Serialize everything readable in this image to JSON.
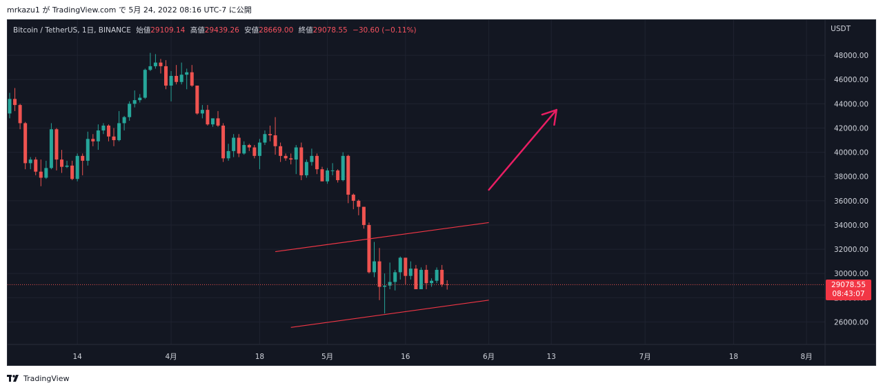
{
  "header": {
    "publish_text": "mrkazu1 が TradingView.com で 5月 24, 2022 08:16 UTC-7 に公開"
  },
  "legend": {
    "symbol": "Bitcoin / TetherUS, 1日, BINANCE",
    "open_label": "始値",
    "open_value": "29109.14",
    "high_label": "高値",
    "high_value": "29439.26",
    "low_label": "安値",
    "low_value": "28669.00",
    "close_label": "終値",
    "close_value": "29078.55",
    "change": "−30.60 (−0.11%)"
  },
  "price_axis": {
    "currency": "USDT",
    "last_price": "29078.55",
    "countdown": "08:43:07"
  },
  "footer": {
    "brand": "TradingView"
  },
  "colors": {
    "background": "#131722",
    "grid": "#1f2330",
    "up": "#26a69a",
    "down": "#ef5350",
    "trendline": "#f23645",
    "arrow": "#e91e63",
    "axis_text": "#d1d4dc"
  },
  "chart_data": {
    "type": "candlestick",
    "ylim": [
      24600,
      50000
    ],
    "y_ticks": [
      26000,
      28000,
      30000,
      32000,
      34000,
      36000,
      38000,
      40000,
      42000,
      44000,
      46000,
      48000
    ],
    "y_tick_labels": [
      "26000.00",
      "28000.00",
      "30000.00",
      "32000.00",
      "34000.00",
      "36000.00",
      "38000.00",
      "40000.00",
      "42000.00",
      "44000.00",
      "46000.00",
      "48000.00"
    ],
    "start_date": "2022-03-01",
    "x_ticks": [
      {
        "date": "2022-03-14",
        "label": "14"
      },
      {
        "date": "2022-04-01",
        "label": "4月"
      },
      {
        "date": "2022-04-18",
        "label": "18"
      },
      {
        "date": "2022-05-01",
        "label": "5月"
      },
      {
        "date": "2022-05-16",
        "label": "16"
      },
      {
        "date": "2022-06-01",
        "label": "6月"
      },
      {
        "date": "2022-06-13",
        "label": "13"
      },
      {
        "date": "2022-07-01",
        "label": "7月"
      },
      {
        "date": "2022-07-18",
        "label": "18"
      },
      {
        "date": "2022-08-01",
        "label": "8月"
      }
    ],
    "candles": [
      {
        "date": "2022-03-01",
        "o": 43200,
        "h": 44900,
        "l": 42800,
        "c": 44400
      },
      {
        "date": "2022-03-02",
        "o": 44400,
        "h": 45300,
        "l": 43400,
        "c": 43900
      },
      {
        "date": "2022-03-03",
        "o": 43900,
        "h": 44000,
        "l": 41900,
        "c": 42400
      },
      {
        "date": "2022-03-04",
        "o": 42400,
        "h": 42500,
        "l": 38600,
        "c": 39100
      },
      {
        "date": "2022-03-05",
        "o": 39100,
        "h": 39600,
        "l": 38600,
        "c": 39400
      },
      {
        "date": "2022-03-06",
        "o": 39400,
        "h": 39600,
        "l": 38100,
        "c": 38400
      },
      {
        "date": "2022-03-07",
        "o": 38400,
        "h": 39400,
        "l": 37200,
        "c": 37900
      },
      {
        "date": "2022-03-08",
        "o": 37900,
        "h": 39300,
        "l": 37800,
        "c": 38700
      },
      {
        "date": "2022-03-09",
        "o": 38700,
        "h": 42400,
        "l": 38600,
        "c": 41900
      },
      {
        "date": "2022-03-10",
        "o": 41900,
        "h": 42000,
        "l": 38500,
        "c": 39400
      },
      {
        "date": "2022-03-11",
        "o": 39400,
        "h": 40200,
        "l": 38300,
        "c": 38800
      },
      {
        "date": "2022-03-12",
        "o": 38800,
        "h": 39300,
        "l": 38700,
        "c": 38900
      },
      {
        "date": "2022-03-13",
        "o": 38900,
        "h": 39300,
        "l": 37700,
        "c": 37800
      },
      {
        "date": "2022-03-14",
        "o": 37800,
        "h": 39900,
        "l": 37600,
        "c": 39700
      },
      {
        "date": "2022-03-15",
        "o": 39700,
        "h": 39900,
        "l": 38100,
        "c": 39300
      },
      {
        "date": "2022-03-16",
        "o": 39300,
        "h": 41700,
        "l": 38900,
        "c": 41100
      },
      {
        "date": "2022-03-17",
        "o": 41100,
        "h": 41500,
        "l": 40500,
        "c": 40900
      },
      {
        "date": "2022-03-18",
        "o": 40900,
        "h": 42300,
        "l": 40200,
        "c": 41800
      },
      {
        "date": "2022-03-19",
        "o": 41800,
        "h": 42400,
        "l": 41500,
        "c": 42200
      },
      {
        "date": "2022-03-20",
        "o": 42200,
        "h": 42300,
        "l": 40900,
        "c": 41300
      },
      {
        "date": "2022-03-21",
        "o": 41300,
        "h": 42000,
        "l": 40500,
        "c": 41000
      },
      {
        "date": "2022-03-22",
        "o": 41000,
        "h": 43400,
        "l": 40900,
        "c": 42400
      },
      {
        "date": "2022-03-23",
        "o": 42400,
        "h": 43000,
        "l": 41800,
        "c": 42900
      },
      {
        "date": "2022-03-24",
        "o": 42900,
        "h": 44200,
        "l": 42600,
        "c": 44000
      },
      {
        "date": "2022-03-25",
        "o": 44000,
        "h": 45100,
        "l": 43700,
        "c": 44300
      },
      {
        "date": "2022-03-26",
        "o": 44300,
        "h": 44800,
        "l": 44100,
        "c": 44500
      },
      {
        "date": "2022-03-27",
        "o": 44500,
        "h": 46900,
        "l": 44400,
        "c": 46800
      },
      {
        "date": "2022-03-28",
        "o": 46800,
        "h": 48200,
        "l": 46700,
        "c": 47100
      },
      {
        "date": "2022-03-29",
        "o": 47100,
        "h": 48100,
        "l": 46900,
        "c": 47400
      },
      {
        "date": "2022-03-30",
        "o": 47400,
        "h": 47700,
        "l": 46500,
        "c": 47100
      },
      {
        "date": "2022-03-31",
        "o": 47100,
        "h": 47600,
        "l": 45200,
        "c": 45500
      },
      {
        "date": "2022-04-01",
        "o": 45500,
        "h": 46700,
        "l": 44200,
        "c": 46300
      },
      {
        "date": "2022-04-02",
        "o": 46300,
        "h": 47200,
        "l": 45600,
        "c": 45800
      },
      {
        "date": "2022-04-03",
        "o": 45800,
        "h": 47400,
        "l": 45600,
        "c": 46400
      },
      {
        "date": "2022-04-04",
        "o": 46400,
        "h": 46900,
        "l": 45200,
        "c": 46600
      },
      {
        "date": "2022-04-05",
        "o": 46600,
        "h": 47200,
        "l": 45400,
        "c": 45500
      },
      {
        "date": "2022-04-06",
        "o": 45500,
        "h": 45500,
        "l": 43100,
        "c": 43200
      },
      {
        "date": "2022-04-07",
        "o": 43200,
        "h": 43900,
        "l": 42800,
        "c": 43500
      },
      {
        "date": "2022-04-08",
        "o": 43500,
        "h": 43900,
        "l": 42200,
        "c": 42300
      },
      {
        "date": "2022-04-09",
        "o": 42300,
        "h": 42800,
        "l": 42100,
        "c": 42800
      },
      {
        "date": "2022-04-10",
        "o": 42800,
        "h": 43400,
        "l": 42100,
        "c": 42200
      },
      {
        "date": "2022-04-11",
        "o": 42200,
        "h": 42400,
        "l": 39200,
        "c": 39500
      },
      {
        "date": "2022-04-12",
        "o": 39500,
        "h": 40700,
        "l": 39300,
        "c": 40100
      },
      {
        "date": "2022-04-13",
        "o": 40100,
        "h": 41500,
        "l": 39600,
        "c": 41200
      },
      {
        "date": "2022-04-14",
        "o": 41200,
        "h": 41500,
        "l": 39600,
        "c": 39900
      },
      {
        "date": "2022-04-15",
        "o": 39900,
        "h": 40900,
        "l": 39800,
        "c": 40600
      },
      {
        "date": "2022-04-16",
        "o": 40600,
        "h": 40700,
        "l": 40100,
        "c": 40400
      },
      {
        "date": "2022-04-17",
        "o": 40400,
        "h": 40600,
        "l": 39500,
        "c": 39700
      },
      {
        "date": "2022-04-18",
        "o": 39700,
        "h": 41100,
        "l": 38600,
        "c": 40800
      },
      {
        "date": "2022-04-19",
        "o": 40800,
        "h": 41800,
        "l": 40600,
        "c": 41500
      },
      {
        "date": "2022-04-20",
        "o": 41500,
        "h": 42200,
        "l": 40900,
        "c": 41400
      },
      {
        "date": "2022-04-21",
        "o": 41400,
        "h": 42900,
        "l": 39800,
        "c": 40500
      },
      {
        "date": "2022-04-22",
        "o": 40500,
        "h": 40800,
        "l": 39200,
        "c": 39700
      },
      {
        "date": "2022-04-23",
        "o": 39700,
        "h": 39900,
        "l": 39300,
        "c": 39500
      },
      {
        "date": "2022-04-24",
        "o": 39500,
        "h": 39900,
        "l": 39000,
        "c": 39400
      },
      {
        "date": "2022-04-25",
        "o": 39400,
        "h": 40600,
        "l": 38200,
        "c": 40400
      },
      {
        "date": "2022-04-26",
        "o": 40400,
        "h": 40800,
        "l": 37700,
        "c": 38100
      },
      {
        "date": "2022-04-27",
        "o": 38100,
        "h": 39400,
        "l": 37900,
        "c": 39200
      },
      {
        "date": "2022-04-28",
        "o": 39200,
        "h": 40300,
        "l": 38900,
        "c": 39700
      },
      {
        "date": "2022-04-29",
        "o": 39700,
        "h": 39900,
        "l": 38200,
        "c": 38600
      },
      {
        "date": "2022-04-30",
        "o": 38600,
        "h": 38800,
        "l": 37600,
        "c": 37600
      },
      {
        "date": "2022-05-01",
        "o": 37600,
        "h": 38700,
        "l": 37400,
        "c": 38500
      },
      {
        "date": "2022-05-02",
        "o": 38500,
        "h": 39100,
        "l": 38100,
        "c": 38500
      },
      {
        "date": "2022-05-03",
        "o": 38500,
        "h": 38600,
        "l": 37500,
        "c": 37700
      },
      {
        "date": "2022-05-04",
        "o": 37700,
        "h": 40000,
        "l": 37600,
        "c": 39700
      },
      {
        "date": "2022-05-05",
        "o": 39700,
        "h": 39800,
        "l": 35800,
        "c": 36500
      },
      {
        "date": "2022-05-06",
        "o": 36500,
        "h": 36600,
        "l": 35300,
        "c": 36000
      },
      {
        "date": "2022-05-07",
        "o": 36000,
        "h": 36100,
        "l": 34800,
        "c": 35500
      },
      {
        "date": "2022-05-08",
        "o": 35500,
        "h": 35500,
        "l": 33700,
        "c": 34000
      },
      {
        "date": "2022-05-09",
        "o": 34000,
        "h": 34200,
        "l": 30000,
        "c": 30100
      },
      {
        "date": "2022-05-10",
        "o": 30100,
        "h": 32600,
        "l": 29700,
        "c": 31000
      },
      {
        "date": "2022-05-11",
        "o": 31000,
        "h": 32100,
        "l": 27800,
        "c": 28900
      },
      {
        "date": "2022-05-12",
        "o": 28900,
        "h": 30000,
        "l": 26700,
        "c": 29000
      },
      {
        "date": "2022-05-13",
        "o": 29000,
        "h": 30900,
        "l": 28700,
        "c": 29300
      },
      {
        "date": "2022-05-14",
        "o": 29300,
        "h": 30300,
        "l": 28600,
        "c": 30100
      },
      {
        "date": "2022-05-15",
        "o": 30100,
        "h": 31400,
        "l": 29500,
        "c": 31300
      },
      {
        "date": "2022-05-16",
        "o": 31300,
        "h": 31300,
        "l": 29100,
        "c": 29800
      },
      {
        "date": "2022-05-17",
        "o": 29800,
        "h": 31000,
        "l": 29500,
        "c": 30400
      },
      {
        "date": "2022-05-18",
        "o": 30400,
        "h": 30700,
        "l": 28700,
        "c": 28700
      },
      {
        "date": "2022-05-19",
        "o": 28700,
        "h": 30500,
        "l": 28700,
        "c": 30300
      },
      {
        "date": "2022-05-20",
        "o": 30300,
        "h": 30700,
        "l": 28700,
        "c": 29200
      },
      {
        "date": "2022-05-21",
        "o": 29200,
        "h": 29600,
        "l": 28900,
        "c": 29400
      },
      {
        "date": "2022-05-22",
        "o": 29400,
        "h": 30500,
        "l": 29200,
        "c": 30300
      },
      {
        "date": "2022-05-23",
        "o": 30300,
        "h": 30700,
        "l": 28900,
        "c": 29100
      },
      {
        "date": "2022-05-24",
        "o": 29109,
        "h": 29439,
        "l": 28669,
        "c": 29079
      }
    ],
    "trendlines": [
      {
        "from": {
          "date": "2022-04-21",
          "price": 31800
        },
        "to": {
          "date": "2022-06-01",
          "price": 34200
        }
      },
      {
        "from": {
          "date": "2022-04-24",
          "price": 25550
        },
        "to": {
          "date": "2022-06-01",
          "price": 27800
        }
      }
    ],
    "arrow": {
      "from": {
        "date": "2022-06-01",
        "price": 36900
      },
      "to": {
        "date": "2022-06-14",
        "price": 43500
      }
    }
  }
}
